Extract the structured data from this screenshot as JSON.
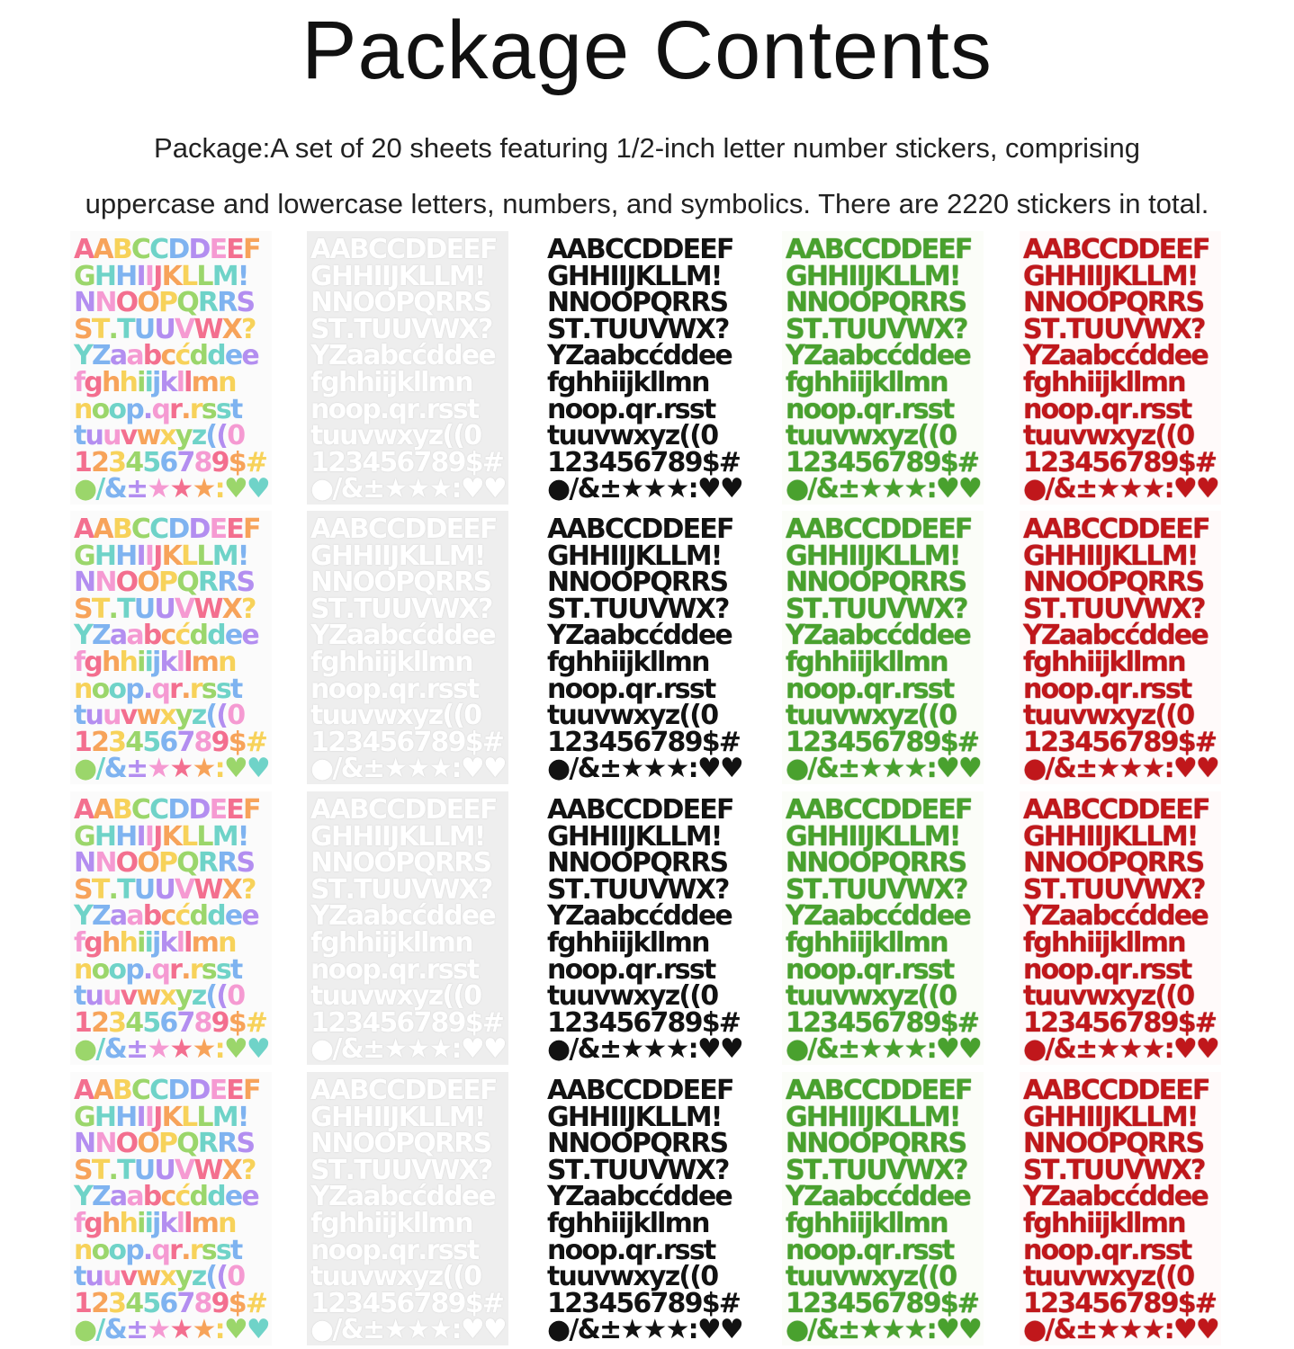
{
  "page": {
    "title": "Package Contents",
    "description_line1": "Package:A set of 20 sheets featuring 1/2-inch letter number stickers, comprising",
    "description_line2": "uppercase and lowercase letters, numbers, and symbolics.  There are 2220 stickers in total."
  },
  "sticker_rows": [
    "AABCCDDEEF",
    "GHHIIJKLLM!",
    "NNOOPQRRS",
    "ST.TUUVWX?",
    "YZaabcćddee",
    "fghhiijkllmn",
    "noop.qr.rsst",
    "tuuvwxyz((0",
    "123456789$#",
    "●/&±★★★:♥♥"
  ],
  "sheet_styles": [
    "multicolor",
    "white",
    "black",
    "green-glitter",
    "red-glitter"
  ],
  "sheets_per_style": 4,
  "colors": {
    "multicolor_palette": [
      "#f36f8f",
      "#f7a35a",
      "#f7d25a",
      "#9bd66b",
      "#6fd3c8",
      "#7fb3f0",
      "#b38ef0",
      "#f59ad2"
    ],
    "white": "#ffffff",
    "black": "#121212",
    "green": "#49a12e",
    "red": "#c0171b"
  }
}
